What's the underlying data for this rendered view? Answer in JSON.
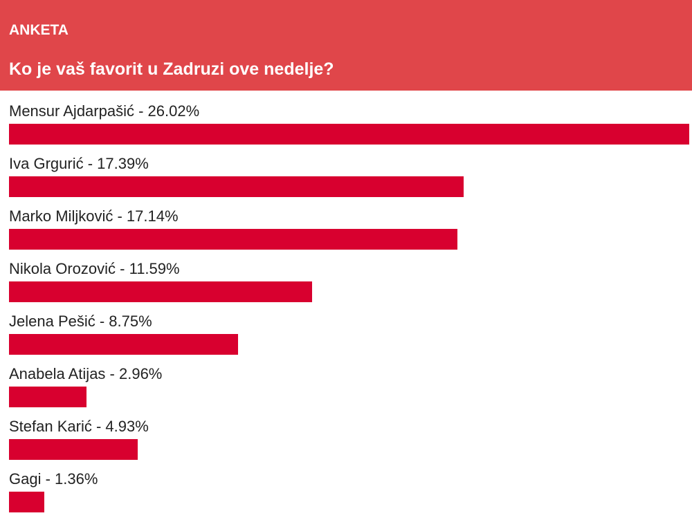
{
  "poll": {
    "kicker": "ANKETA",
    "question": "Ko je vaš favorit u Zadruzi ove nedelje?",
    "options": [
      {
        "label": "Mensur Ajdarpašić - 26.02%",
        "value": 26.02
      },
      {
        "label": "Iva Grgurić - 17.39%",
        "value": 17.39
      },
      {
        "label": "Marko Miljković - 17.14%",
        "value": 17.14
      },
      {
        "label": "Nikola Orozović - 11.59%",
        "value": 11.59
      },
      {
        "label": "Jelena Pešić - 8.75%",
        "value": 8.75
      },
      {
        "label": "Anabela Atijas - 2.96%",
        "value": 2.96
      },
      {
        "label": "Stefan Karić - 4.93%",
        "value": 4.93
      },
      {
        "label": "Gagi - 1.36%",
        "value": 1.36
      }
    ]
  }
}
